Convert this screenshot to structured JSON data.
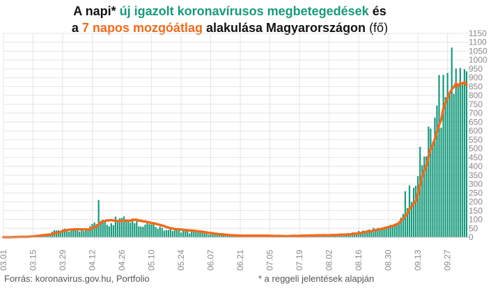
{
  "title": {
    "line1_a": "A napi* ",
    "line1_b": "új igazolt koronavírusos megbetegedések",
    "line1_c": " és",
    "line2_a": "a ",
    "line2_b": "7 napos mozgóátlag",
    "line2_c": " alakulása Magyarországon",
    "line2_d": " (fő)"
  },
  "footer": {
    "source": "Forrás: koronavirus.gov.hu, Portfolio",
    "note": "* a reggeli jelentések alapján"
  },
  "colors": {
    "bars": "#169a7c",
    "line": "#f26a1b",
    "grid": "#e4e4e4",
    "axis_text": "#888888"
  },
  "chart_data": {
    "type": "bar",
    "x_start": "2020-03-01",
    "x_end": "2020-09-27",
    "x_ticks": [
      "03.01",
      "03.15",
      "03.29",
      "04.12",
      "04.26",
      "05.10",
      "05.24",
      "06.07",
      "06.21",
      "07.05",
      "07.19",
      "08.02",
      "08.16",
      "08.30",
      "09.13",
      "09.27"
    ],
    "y_ticks": [
      0,
      50,
      100,
      150,
      200,
      250,
      300,
      350,
      400,
      450,
      500,
      550,
      600,
      650,
      700,
      750,
      800,
      850,
      900,
      950,
      1000,
      1050,
      1100,
      1150
    ],
    "ylim": [
      0,
      1150
    ],
    "grid": true,
    "series": [
      {
        "kind": "bar",
        "values": [
          0,
          0,
          0,
          1,
          0,
          2,
          2,
          3,
          0,
          3,
          3,
          1,
          7,
          6,
          9,
          11,
          12,
          12,
          17,
          18,
          16,
          14,
          16,
          31,
          39,
          38,
          39,
          34,
          45,
          48,
          43,
          31,
          47,
          45,
          50,
          38,
          32,
          42,
          35,
          49,
          40,
          62,
          75,
          83,
          74,
          210,
          92,
          99,
          88,
          70,
          61,
          79,
          68,
          116,
          86,
          107,
          109,
          117,
          89,
          86,
          82,
          97,
          79,
          90,
          61,
          60,
          59,
          71,
          84,
          74,
          72,
          78,
          58,
          47,
          60,
          53,
          37,
          40,
          41,
          53,
          35,
          39,
          40,
          50,
          26,
          35,
          39,
          44,
          21,
          38,
          36,
          28,
          33,
          32,
          29,
          23,
          22,
          15,
          21,
          15,
          16,
          14,
          12,
          10,
          13,
          8,
          10,
          10,
          7,
          11,
          9,
          6,
          9,
          7,
          11,
          13,
          8,
          9,
          10,
          7,
          9,
          10,
          5,
          8,
          6,
          9,
          7,
          6,
          3,
          4,
          12,
          8,
          3,
          7,
          5,
          4,
          10,
          7,
          9,
          6,
          14,
          10,
          8,
          9,
          13,
          11,
          9,
          6,
          15,
          11,
          8,
          8,
          16,
          13,
          10,
          13,
          17,
          15,
          13,
          19,
          17,
          13,
          21,
          24,
          17,
          27,
          27,
          20,
          35,
          29,
          38,
          35,
          40,
          44,
          31,
          53,
          41,
          53,
          46,
          45,
          53,
          60,
          59,
          70,
          65,
          75,
          72,
          81,
          110,
          132,
          260,
          164,
          292,
          199,
          279,
          290,
          345,
          510,
          407,
          455,
          456,
          624,
          613,
          539,
          675,
          743,
          915,
          618,
          916,
          791,
          927,
          821,
          1070,
          809,
          952,
          866,
          955,
          869,
          948,
          936
        ]
      },
      {
        "kind": "line",
        "name": "7 napos mozgóátlag",
        "values": [
          0,
          0,
          0,
          0,
          0,
          1,
          1,
          2,
          2,
          2,
          2,
          2,
          3,
          4,
          4,
          6,
          7,
          8,
          10,
          12,
          13,
          14,
          15,
          17,
          21,
          24,
          27,
          30,
          34,
          38,
          40,
          42,
          43,
          43,
          45,
          45,
          44,
          44,
          44,
          44,
          43,
          46,
          51,
          57,
          61,
          72,
          82,
          89,
          91,
          95,
          95,
          97,
          94,
          93,
          91,
          92,
          91,
          94,
          94,
          93,
          93,
          99,
          98,
          99,
          93,
          93,
          90,
          89,
          85,
          84,
          80,
          79,
          76,
          72,
          70,
          66,
          63,
          57,
          55,
          50,
          49,
          46,
          45,
          45,
          43,
          42,
          40,
          40,
          38,
          38,
          37,
          35,
          33,
          33,
          31,
          29,
          27,
          25,
          24,
          22,
          20,
          19,
          17,
          16,
          16,
          14,
          13,
          12,
          11,
          11,
          10,
          10,
          9,
          9,
          9,
          9,
          9,
          9,
          9,
          9,
          9,
          9,
          9,
          9,
          9,
          9,
          8,
          8,
          7,
          7,
          8,
          7,
          7,
          6,
          6,
          6,
          7,
          8,
          8,
          7,
          8,
          9,
          9,
          9,
          10,
          10,
          10,
          10,
          11,
          11,
          11,
          11,
          12,
          11,
          11,
          12,
          13,
          12,
          13,
          14,
          14,
          14,
          15,
          16,
          16,
          17,
          20,
          21,
          22,
          24,
          27,
          29,
          31,
          33,
          34,
          38,
          40,
          42,
          45,
          48,
          51,
          54,
          57,
          61,
          63,
          69,
          73,
          79,
          95,
          101,
          121,
          133,
          160,
          172,
          190,
          202,
          244,
          294,
          344,
          379,
          403,
          455,
          497,
          518,
          555,
          596,
          633,
          663,
          726,
          757,
          786,
          812,
          834,
          848,
          868,
          850,
          870,
          866,
          876,
          859
        ]
      }
    ]
  }
}
